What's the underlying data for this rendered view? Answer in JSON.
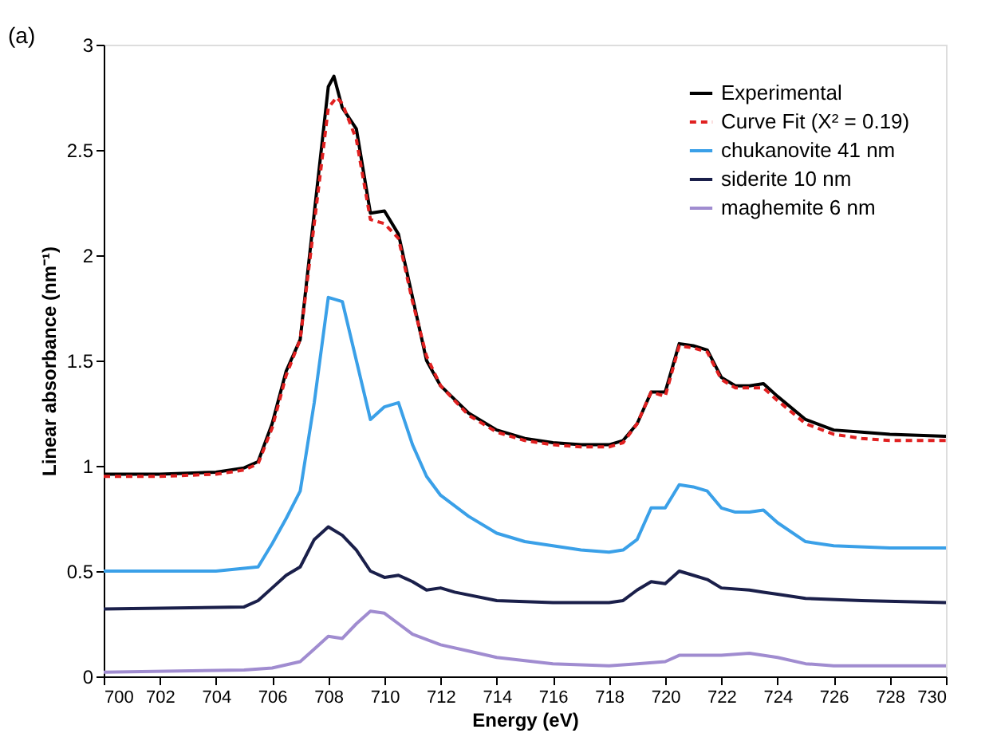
{
  "chart_data": {
    "type": "line",
    "xlabel": "Energy (eV)",
    "ylabel": "Linear absorbance (nm⁻¹)",
    "annotations": [
      "(a)"
    ],
    "xlim": [
      700,
      730
    ],
    "xticks": [
      700,
      702,
      704,
      706,
      708,
      710,
      712,
      714,
      716,
      718,
      720,
      722,
      724,
      726,
      728,
      730
    ],
    "ylim": [
      0,
      3
    ],
    "yticks": [
      0,
      0.5,
      1,
      1.5,
      2,
      2.5,
      3
    ],
    "grid": false,
    "legend": "top right",
    "marker": "none",
    "series": [
      {
        "name": "Experimental",
        "color": "#000000",
        "line_style": "solid",
        "x": [
          700,
          702,
          704,
          705,
          705.5,
          706,
          706.5,
          707,
          707.5,
          708,
          708.2,
          708.5,
          709,
          709.5,
          710,
          710.5,
          711,
          711.5,
          712,
          713,
          714,
          715,
          716,
          717,
          718,
          718.5,
          719,
          719.5,
          720,
          720.5,
          721,
          721.5,
          722,
          722.5,
          723,
          723.5,
          724,
          725,
          726,
          727,
          728,
          730
        ],
        "values": [
          0.96,
          0.96,
          0.97,
          0.99,
          1.02,
          1.2,
          1.45,
          1.6,
          2.2,
          2.8,
          2.85,
          2.7,
          2.6,
          2.2,
          2.21,
          2.1,
          1.8,
          1.5,
          1.38,
          1.25,
          1.17,
          1.13,
          1.11,
          1.1,
          1.1,
          1.12,
          1.2,
          1.35,
          1.35,
          1.58,
          1.57,
          1.55,
          1.42,
          1.38,
          1.38,
          1.39,
          1.33,
          1.22,
          1.17,
          1.16,
          1.15,
          1.14
        ]
      },
      {
        "name": "Curve Fit (X² = 0.19)",
        "color": "#e02020",
        "line_style": "dashed",
        "x": [
          700,
          702,
          704,
          705,
          705.5,
          706,
          706.5,
          707,
          707.5,
          708,
          708.3,
          708.5,
          709,
          709.5,
          710,
          710.5,
          711,
          711.5,
          712,
          713,
          714,
          715,
          716,
          717,
          718,
          718.5,
          719,
          719.5,
          720,
          720.5,
          721,
          721.5,
          722,
          722.5,
          723,
          723.5,
          724,
          725,
          726,
          727,
          728,
          730
        ],
        "values": [
          0.95,
          0.95,
          0.96,
          0.98,
          1.01,
          1.18,
          1.43,
          1.6,
          2.15,
          2.7,
          2.75,
          2.72,
          2.55,
          2.17,
          2.15,
          2.08,
          1.78,
          1.52,
          1.38,
          1.24,
          1.16,
          1.12,
          1.1,
          1.09,
          1.09,
          1.11,
          1.2,
          1.35,
          1.33,
          1.57,
          1.56,
          1.54,
          1.41,
          1.37,
          1.37,
          1.37,
          1.31,
          1.2,
          1.15,
          1.13,
          1.12,
          1.12
        ]
      },
      {
        "name": "chukanovite 41 nm",
        "color": "#3aa0e8",
        "line_style": "solid",
        "x": [
          700,
          704,
          705.5,
          706,
          706.5,
          707,
          707.5,
          708,
          708.5,
          709,
          709.5,
          710,
          710.5,
          711,
          711.5,
          712,
          713,
          714,
          715,
          716,
          717,
          718,
          718.5,
          719,
          719.5,
          720,
          720.5,
          721,
          721.5,
          722,
          722.5,
          723,
          723.5,
          724,
          725,
          726,
          728,
          730
        ],
        "values": [
          0.5,
          0.5,
          0.52,
          0.63,
          0.75,
          0.88,
          1.3,
          1.8,
          1.78,
          1.5,
          1.22,
          1.28,
          1.3,
          1.1,
          0.95,
          0.86,
          0.76,
          0.68,
          0.64,
          0.62,
          0.6,
          0.59,
          0.6,
          0.65,
          0.8,
          0.8,
          0.91,
          0.9,
          0.88,
          0.8,
          0.78,
          0.78,
          0.79,
          0.73,
          0.64,
          0.62,
          0.61,
          0.61
        ]
      },
      {
        "name": "siderite 10 nm",
        "color": "#1a1f4a",
        "line_style": "solid",
        "x": [
          700,
          705,
          705.5,
          706,
          706.5,
          707,
          707.5,
          708,
          708.5,
          709,
          709.5,
          710,
          710.5,
          711,
          711.5,
          712,
          712.5,
          714,
          716,
          718,
          718.5,
          719,
          719.5,
          720,
          720.5,
          721,
          721.5,
          722,
          723,
          723.5,
          724,
          725,
          727,
          730
        ],
        "values": [
          0.32,
          0.33,
          0.36,
          0.42,
          0.48,
          0.52,
          0.65,
          0.71,
          0.67,
          0.6,
          0.5,
          0.47,
          0.48,
          0.45,
          0.41,
          0.42,
          0.4,
          0.36,
          0.35,
          0.35,
          0.36,
          0.41,
          0.45,
          0.44,
          0.5,
          0.48,
          0.46,
          0.42,
          0.41,
          0.4,
          0.39,
          0.37,
          0.36,
          0.35
        ]
      },
      {
        "name": "maghemite 6 nm",
        "color": "#a08cd0",
        "line_style": "solid",
        "x": [
          700,
          705,
          706,
          707,
          707.5,
          708,
          708.5,
          709,
          709.5,
          710,
          710.5,
          711,
          712,
          713,
          714,
          716,
          718,
          719,
          720,
          720.5,
          721,
          722,
          723,
          724,
          725,
          726,
          730
        ],
        "values": [
          0.02,
          0.03,
          0.04,
          0.07,
          0.13,
          0.19,
          0.18,
          0.25,
          0.31,
          0.3,
          0.25,
          0.2,
          0.15,
          0.12,
          0.09,
          0.06,
          0.05,
          0.06,
          0.07,
          0.1,
          0.1,
          0.1,
          0.11,
          0.09,
          0.06,
          0.05,
          0.05
        ]
      }
    ]
  }
}
